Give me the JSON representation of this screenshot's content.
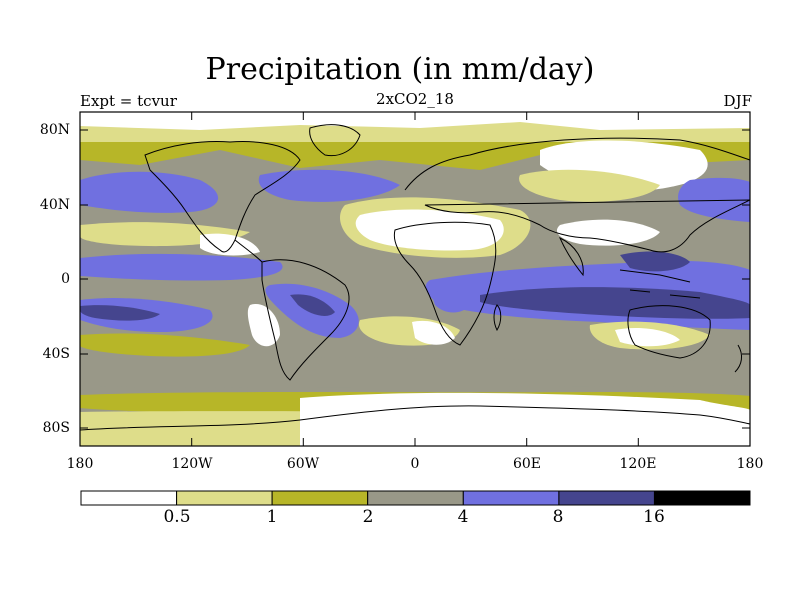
{
  "title": "Precipitation (in mm/day)",
  "subtitle_left": "Expt = tcvur",
  "subtitle_center": "2xCO2_18",
  "subtitle_right": "DJF",
  "y_ticks": [
    "80N",
    "40N",
    "0",
    "40S",
    "80S"
  ],
  "x_ticks": [
    "180",
    "120W",
    "60W",
    "0",
    "60E",
    "120E",
    "180"
  ],
  "colorbar": {
    "colors": [
      "#ffffff",
      "#dedd8a",
      "#b7b628",
      "#999888",
      "#7070e0",
      "#45458e",
      "#000000"
    ],
    "labels": [
      "0.5",
      "1",
      "2",
      "4",
      "8",
      "16"
    ]
  }
}
